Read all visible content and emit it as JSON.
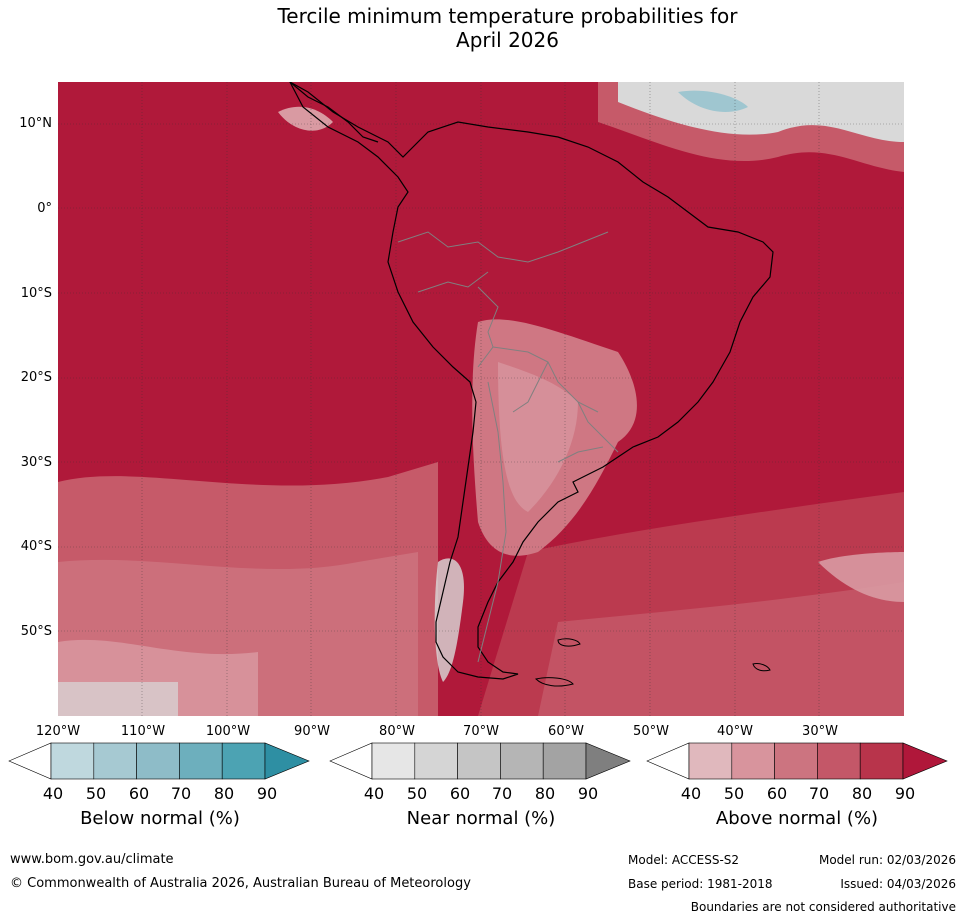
{
  "title_line1": "Tercile minimum temperature probabilities for",
  "title_line2": "April 2026",
  "lat_labels": [
    "10°N",
    "0°",
    "10°S",
    "20°S",
    "30°S",
    "40°S",
    "50°S"
  ],
  "lon_labels": [
    "120°W",
    "110°W",
    "100°W",
    "90°W",
    "80°W",
    "70°W",
    "60°W",
    "50°W",
    "40°W",
    "30°W"
  ],
  "colorbars": [
    {
      "label": "Below normal (%)",
      "ticks": [
        "40",
        "50",
        "60",
        "70",
        "80",
        "90"
      ],
      "colors": [
        "#ffffff",
        "#bfd8de",
        "#a6c9d2",
        "#8ebcc8",
        "#6dafbd",
        "#4ca3b3",
        "#2e8fa3"
      ]
    },
    {
      "label": "Near normal (%)",
      "ticks": [
        "40",
        "50",
        "60",
        "70",
        "80",
        "90"
      ],
      "colors": [
        "#ffffff",
        "#e6e6e6",
        "#d5d5d5",
        "#c5c5c5",
        "#b5b5b5",
        "#a3a3a3",
        "#7f7f7f"
      ]
    },
    {
      "label": "Above normal (%)",
      "ticks": [
        "40",
        "50",
        "60",
        "70",
        "80",
        "90"
      ],
      "colors": [
        "#ffffff",
        "#e0b8bd",
        "#d8949d",
        "#cc7480",
        "#c45768",
        "#b8344b",
        "#b0173a"
      ]
    }
  ],
  "footer": {
    "website": "www.bom.gov.au/climate",
    "copyright": "© Commonwealth of Australia 2026, Australian Bureau of Meteorology",
    "model": "Model: ACCESS-S2",
    "model_run": "Model run: 02/03/2026",
    "base_period": "Base period: 1981-2018",
    "issued": "Issued: 04/03/2026",
    "boundaries": "Boundaries are not considered authoritative"
  },
  "map_colors": {
    "above_90": "#b0193a",
    "above_80": "#bb3a4f",
    "above_70": "#c65a69",
    "above_60": "#cf7783",
    "above_50": "#d99aa2",
    "near": "#d9d9d9",
    "below": "#9fc6d0"
  }
}
